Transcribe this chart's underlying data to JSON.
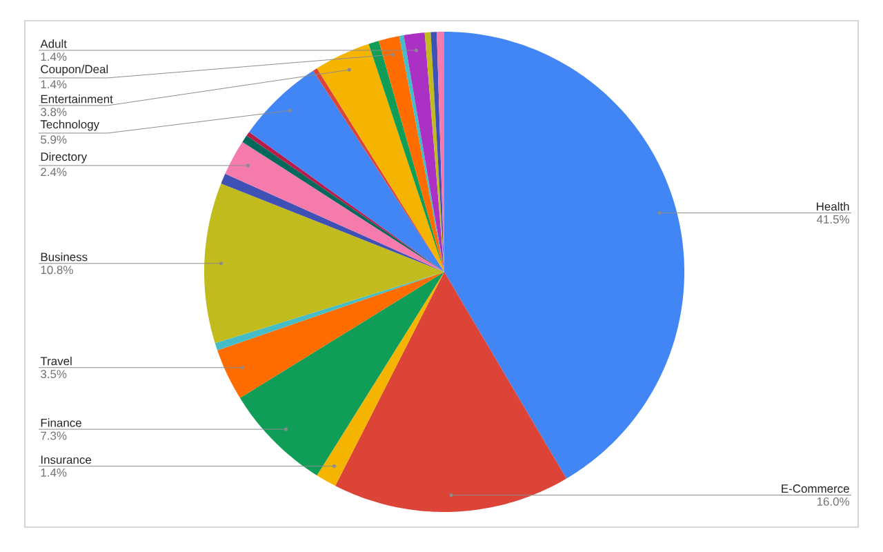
{
  "chart_data": {
    "type": "pie",
    "categories": [
      "Health",
      "E-Commerce",
      "Insurance",
      "Finance",
      "Travel",
      null,
      "Business",
      null,
      "Directory",
      null,
      null,
      "Technology",
      null,
      "Entertainment",
      null,
      "Coupon/Deal",
      null,
      "Adult",
      null,
      null,
      null
    ],
    "values": [
      41.5,
      16.0,
      1.4,
      7.3,
      3.5,
      0.5,
      10.8,
      0.7,
      2.4,
      0.5,
      0.3,
      5.9,
      0.3,
      3.8,
      0.7,
      1.4,
      0.3,
      1.4,
      0.4,
      0.4,
      0.5
    ],
    "colors": [
      "#4285f4",
      "#db4437",
      "#f4b400",
      "#0f9d58",
      "#ff6d00",
      "#46bdc6",
      "#c2bb1e",
      "#3f51b5",
      "#f57bac",
      "#00695c",
      "#b71c4a",
      "#4285f4",
      "#db4437",
      "#f4b400",
      "#0f9d58",
      "#ff6d00",
      "#46bdc6",
      "#ab30c4",
      "#c2bb1e",
      "#3f51b5",
      "#f57bac"
    ],
    "value_labels": [
      "41.5%",
      "16.0%",
      "1.4%",
      "7.3%",
      "3.5%",
      null,
      "10.8%",
      null,
      "2.4%",
      null,
      null,
      "5.9%",
      null,
      "3.8%",
      null,
      "1.4%",
      null,
      "1.4%",
      null,
      null,
      null
    ]
  }
}
